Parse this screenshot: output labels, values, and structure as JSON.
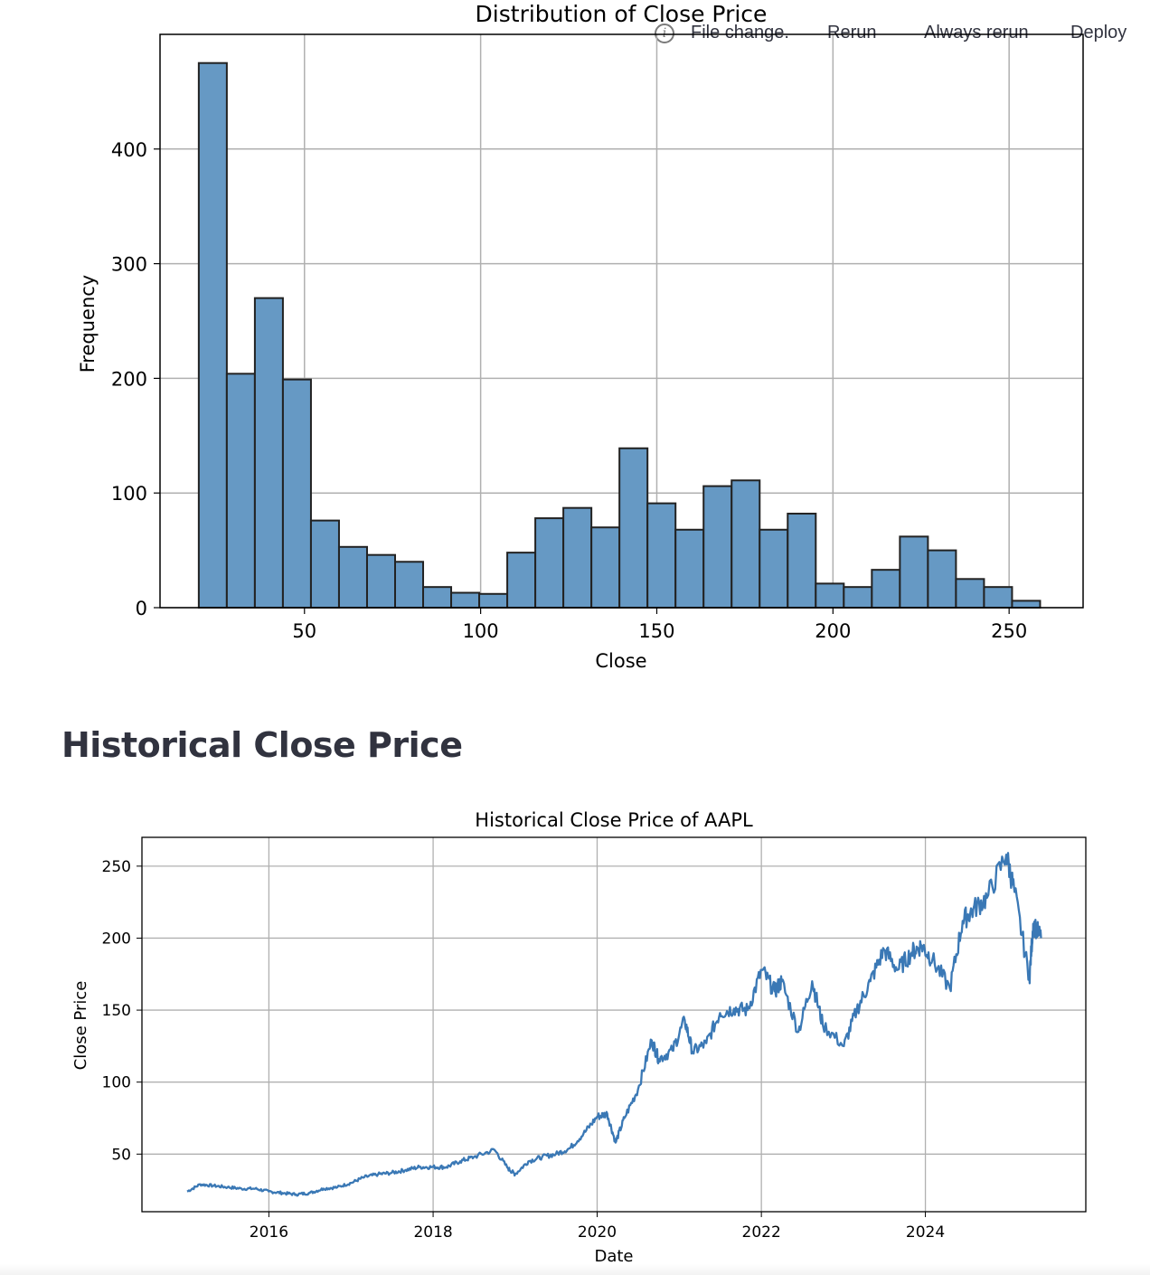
{
  "toolbar": {
    "status": "File change.",
    "rerun": "Rerun",
    "always_rerun": "Always rerun",
    "deploy": "Deploy",
    "info_icon": "info-circle-icon"
  },
  "section_title": "Historical Close Price",
  "colors": {
    "bar_fill": "#6699c4",
    "bar_edge": "#222222",
    "line": "#3a78b5",
    "grid": "#b0b0b0"
  },
  "chart_data": [
    {
      "type": "bar",
      "title": "Distribution of Close Price",
      "xlabel": "Close",
      "ylabel": "Frequency",
      "bin_start": 20,
      "bin_width": 7.96,
      "values": [
        475,
        204,
        270,
        199,
        76,
        53,
        46,
        40,
        18,
        13,
        12,
        48,
        78,
        87,
        70,
        139,
        91,
        68,
        106,
        111,
        68,
        82,
        21,
        18,
        33,
        62,
        50,
        25,
        18,
        6
      ],
      "xlim": [
        9,
        271
      ],
      "ylim": [
        0,
        500
      ],
      "xticks": [
        50,
        100,
        150,
        200,
        250
      ],
      "yticks": [
        0,
        100,
        200,
        300,
        400
      ],
      "grid": true
    },
    {
      "type": "line",
      "title": "Historical Close Price of AAPL",
      "xlabel": "Date",
      "ylabel": "Close Price",
      "series": [
        {
          "x": [
            "2015-01-02",
            "2015-03-01",
            "2015-05-01",
            "2015-07-01",
            "2015-09-01",
            "2015-11-01",
            "2016-01-01",
            "2016-03-01",
            "2016-05-01",
            "2016-07-01",
            "2016-09-01",
            "2016-11-01",
            "2017-01-01",
            "2017-03-01",
            "2017-05-01",
            "2017-07-01",
            "2017-09-01",
            "2017-11-01",
            "2018-01-01",
            "2018-03-01",
            "2018-05-01",
            "2018-07-01",
            "2018-10-01",
            "2018-12-01",
            "2019-01-01",
            "2019-03-01",
            "2019-05-01",
            "2019-07-01",
            "2019-09-01",
            "2019-11-01",
            "2020-01-01",
            "2020-02-15",
            "2020-03-23",
            "2020-05-01",
            "2020-07-01",
            "2020-08-31",
            "2020-10-01",
            "2020-12-01",
            "2021-01-25",
            "2021-03-01",
            "2021-05-01",
            "2021-07-01",
            "2021-09-01",
            "2021-11-01",
            "2022-01-03",
            "2022-03-01",
            "2022-04-01",
            "2022-06-15",
            "2022-08-15",
            "2022-10-01",
            "2023-01-03",
            "2023-03-01",
            "2023-05-01",
            "2023-07-01",
            "2023-09-01",
            "2023-11-01",
            "2023-12-15",
            "2024-02-01",
            "2024-04-19",
            "2024-06-15",
            "2024-08-01",
            "2024-10-01",
            "2024-12-26",
            "2025-02-01",
            "2025-04-08",
            "2025-04-25",
            "2025-05-30"
          ],
          "y": [
            24,
            29,
            28,
            27,
            26,
            26,
            24,
            23,
            22,
            23,
            26,
            27,
            30,
            34,
            36,
            37,
            39,
            41,
            41,
            41,
            45,
            48,
            53,
            40,
            36,
            45,
            48,
            50,
            54,
            64,
            76,
            78,
            58,
            75,
            95,
            129,
            116,
            122,
            143,
            121,
            127,
            148,
            151,
            150,
            178,
            163,
            170,
            135,
            170,
            140,
            125,
            150,
            170,
            192,
            178,
            190,
            195,
            185,
            165,
            212,
            220,
            228,
            258,
            232,
            172,
            210,
            200
          ]
        }
      ],
      "xlim": [
        "2014-06-15",
        "2025-12-15"
      ],
      "ylim": [
        10,
        270
      ],
      "xticks": [
        "2016",
        "2018",
        "2020",
        "2022",
        "2024"
      ],
      "yticks": [
        50,
        100,
        150,
        200,
        250
      ],
      "grid": true
    }
  ]
}
